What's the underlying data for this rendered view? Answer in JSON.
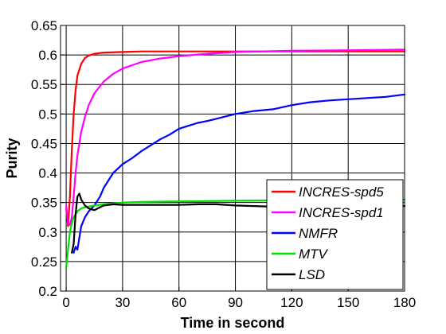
{
  "chart_data": {
    "type": "line",
    "title": "",
    "xlabel": "Time in second",
    "ylabel": "Purity",
    "xlim": [
      -3,
      180
    ],
    "ylim": [
      0.2,
      0.65
    ],
    "xticks": [
      0,
      30,
      60,
      90,
      120,
      150,
      180
    ],
    "yticks": [
      0.2,
      0.25,
      0.3,
      0.35,
      0.4,
      0.45,
      0.5,
      0.55,
      0.6,
      0.65
    ],
    "xtick_labels": [
      "0",
      "30",
      "60",
      "90",
      "120",
      "150",
      "180"
    ],
    "ytick_labels": [
      "0.2",
      "0.25",
      "0.3",
      "0.35",
      "0.4",
      "0.45",
      "0.5",
      "0.55",
      "0.6",
      "0.65"
    ],
    "grid": true,
    "legend_position": "bottom-right",
    "series": [
      {
        "name": "INCRES-spd5",
        "color": "#ff0000",
        "x": [
          0,
          1,
          2,
          3,
          4,
          5,
          6,
          8,
          10,
          12,
          15,
          20,
          30,
          40,
          60,
          90,
          120,
          150,
          180
        ],
        "y": [
          0.34,
          0.31,
          0.36,
          0.44,
          0.5,
          0.54,
          0.565,
          0.585,
          0.595,
          0.599,
          0.602,
          0.604,
          0.605,
          0.606,
          0.606,
          0.606,
          0.606,
          0.606,
          0.606
        ]
      },
      {
        "name": "INCRES-spd1",
        "color": "#ff00ff",
        "x": [
          0,
          1,
          2,
          3,
          4,
          5,
          6,
          8,
          10,
          12,
          15,
          20,
          25,
          30,
          40,
          50,
          60,
          75,
          90,
          120,
          150,
          180
        ],
        "y": [
          0.345,
          0.315,
          0.312,
          0.325,
          0.36,
          0.4,
          0.43,
          0.47,
          0.495,
          0.515,
          0.535,
          0.555,
          0.568,
          0.577,
          0.588,
          0.594,
          0.598,
          0.602,
          0.605,
          0.607,
          0.608,
          0.609
        ]
      },
      {
        "name": "NMFR",
        "color": "#0000ff",
        "x": [
          4,
          5,
          6,
          7,
          8,
          10,
          12,
          15,
          18,
          20,
          25,
          30,
          35,
          40,
          45,
          50,
          55,
          60,
          65,
          70,
          75,
          80,
          90,
          100,
          110,
          120,
          130,
          140,
          150,
          160,
          170,
          180
        ],
        "y": [
          0.265,
          0.275,
          0.27,
          0.29,
          0.31,
          0.325,
          0.335,
          0.345,
          0.36,
          0.375,
          0.4,
          0.415,
          0.425,
          0.437,
          0.447,
          0.457,
          0.465,
          0.475,
          0.48,
          0.485,
          0.488,
          0.492,
          0.5,
          0.505,
          0.508,
          0.515,
          0.52,
          0.523,
          0.525,
          0.527,
          0.529,
          0.533
        ]
      },
      {
        "name": "MTV",
        "color": "#00e000",
        "x": [
          0,
          1,
          2,
          3,
          4,
          5,
          6,
          8,
          10,
          15,
          20,
          30,
          40,
          60,
          90,
          120,
          150,
          180
        ],
        "y": [
          0.24,
          0.27,
          0.3,
          0.315,
          0.325,
          0.33,
          0.335,
          0.34,
          0.342,
          0.345,
          0.347,
          0.35,
          0.351,
          0.352,
          0.353,
          0.354,
          0.354,
          0.355
        ]
      },
      {
        "name": "LSD",
        "color": "#000000",
        "x": [
          3,
          4,
          5,
          6,
          7,
          8,
          9,
          10,
          12,
          15,
          18,
          20,
          25,
          30,
          40,
          50,
          60,
          70,
          80,
          90,
          100,
          110,
          120,
          150,
          180
        ],
        "y": [
          0.265,
          0.28,
          0.33,
          0.36,
          0.365,
          0.355,
          0.35,
          0.345,
          0.34,
          0.337,
          0.342,
          0.345,
          0.347,
          0.346,
          0.346,
          0.346,
          0.346,
          0.347,
          0.347,
          0.345,
          0.344,
          0.343,
          0.343,
          0.343,
          0.344
        ]
      }
    ]
  }
}
